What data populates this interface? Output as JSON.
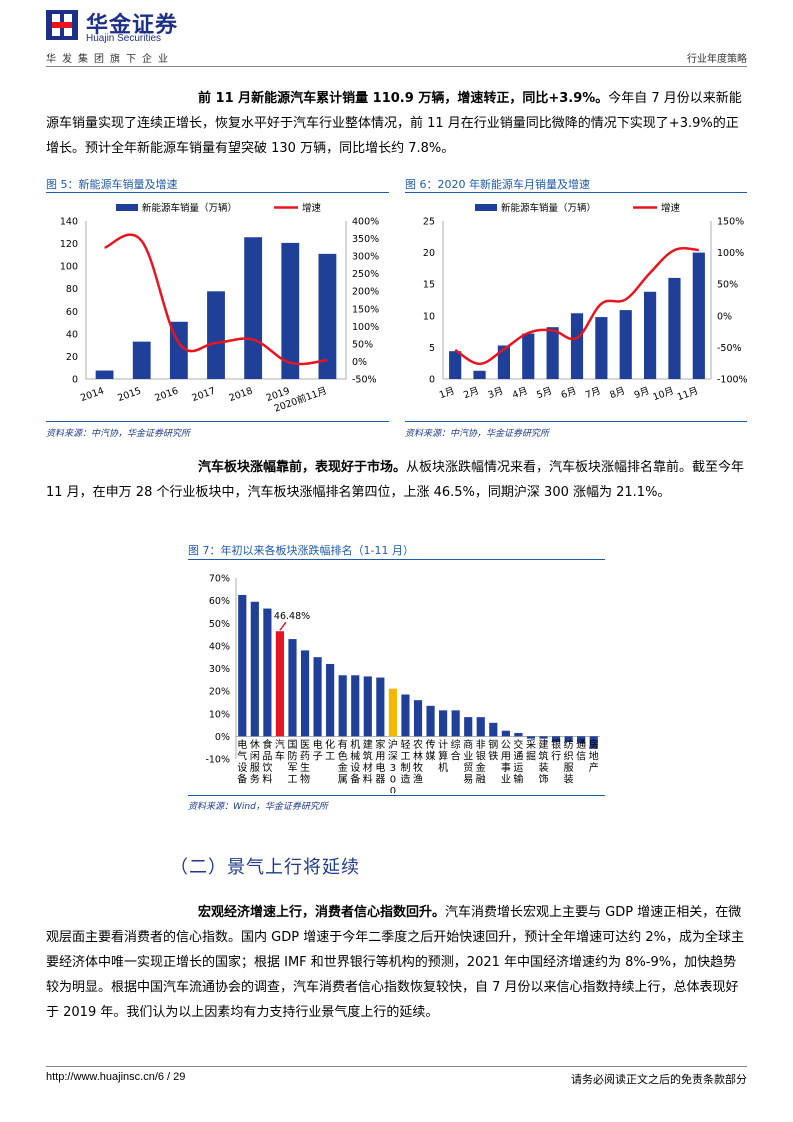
{
  "header": {
    "brand_cn": "华金证券",
    "brand_en": "Huajin Securities",
    "group": "华发集团旗下企业",
    "report_type": "行业年度策略"
  },
  "para1": {
    "bold": "前 11 月新能源汽车累计销量 110.9 万辆，增速转正，同比+3.9%。",
    "text": "今年自 7 月份以来新能源车销量实现了连续正增长，恢复水平好于汽车行业整体情况，前 11 月在行业销量同比微降的情况下实现了+3.9%的正增长。预计全年新能源车销量有望突破 130 万辆，同比增长约 7.8%。"
  },
  "fig5": {
    "title": "图 5：新能源车销量及增速",
    "source": "资料来源：中汽协，华金证券研究所"
  },
  "fig6": {
    "title": "图 6：2020 年新能源车月销量及增速",
    "source": "资料来源：中汽协，华金证券研究所"
  },
  "para2": {
    "bold": "汽车板块涨幅靠前，表现好于市场。",
    "text": "从板块涨跌幅情况来看，汽车板块涨幅排名靠前。截至今年 11 月，在申万 28 个行业板块中，汽车板块涨幅排名第四位，上涨 46.5%，同期沪深 300 涨幅为 21.1%。"
  },
  "fig7": {
    "title": "图 7：年初以来各板块涨跌幅排名（1-11 月）",
    "source": "资料来源：Wind，华金证券研究所"
  },
  "section_title": "（二）景气上行将延续",
  "para3": {
    "bold": "宏观经济增速上行，消费者信心指数回升。",
    "text": "汽车消费增长宏观上主要与 GDP 增速正相关，在微观层面主要看消费者的信心指数。国内 GDP 增速于今年二季度之后开始快速回升，预计全年增速可达约 2%，成为全球主要经济体中唯一实现正增长的国家；根据 IMF 和世界银行等机构的预测，2021 年中国经济增速约为 8%-9%，加快趋势较为明显。根据中国汽车流通协会的调查，汽车消费者信心指数恢复较快，自 7 月份以来信心指数持续上行，总体表现好于 2019 年。我们认为以上因素均有力支持行业景气度上行的延续。"
  },
  "footer": {
    "url": "http://www.huajinsc.cn/6 / 29",
    "disclaimer": "请务必阅读正文之后的免责条款部分"
  },
  "chart_data": [
    {
      "type": "bar",
      "categories": [
        "2014",
        "2015",
        "2016",
        "2017",
        "2018",
        "2019",
        "2020前11月"
      ],
      "series": [
        {
          "name": "新能源车销量（万辆）",
          "type": "bar",
          "axis": "left",
          "color": "#1f3f99",
          "values": [
            7.5,
            33.1,
            50.7,
            77.7,
            125.6,
            120.6,
            110.9
          ]
        },
        {
          "name": "增速",
          "type": "line",
          "axis": "right",
          "color": "#e8141f",
          "values": [
            324,
            343,
            53,
            53,
            62,
            -4,
            3.9
          ]
        }
      ],
      "ylim_left": [
        0,
        140
      ],
      "yticks_left": [
        "0",
        "20",
        "40",
        "60",
        "80",
        "100",
        "120",
        "140"
      ],
      "ylim_right": [
        -50,
        400
      ],
      "yticks_right": [
        "-50%",
        "0%",
        "50%",
        "100%",
        "150%",
        "200%",
        "250%",
        "300%",
        "350%",
        "400%"
      ],
      "legend": "top"
    },
    {
      "type": "bar",
      "categories": [
        "1月",
        "2月",
        "3月",
        "4月",
        "5月",
        "6月",
        "7月",
        "8月",
        "9月",
        "10月",
        "11月"
      ],
      "series": [
        {
          "name": "新能源车销量（万辆）",
          "type": "bar",
          "axis": "left",
          "color": "#1f3f99",
          "values": [
            4.4,
            1.3,
            5.3,
            7.2,
            8.2,
            10.4,
            9.8,
            10.9,
            13.8,
            16.0,
            20.0
          ]
        },
        {
          "name": "增速",
          "type": "line",
          "axis": "right",
          "color": "#e8141f",
          "values": [
            -54,
            -76,
            -53,
            -27,
            -23,
            -35,
            19,
            26,
            68,
            104,
            104
          ]
        }
      ],
      "ylim_left": [
        0,
        25
      ],
      "yticks_left": [
        "0",
        "5",
        "10",
        "15",
        "20",
        "25"
      ],
      "ylim_right": [
        -100,
        150
      ],
      "yticks_right": [
        "-100%",
        "-50%",
        "0%",
        "50%",
        "100%",
        "150%"
      ],
      "legend": "top"
    },
    {
      "type": "bar",
      "categories": [
        "电气设备",
        "休闲服务",
        "食品饮料",
        "汽车",
        "国防军工",
        "医药生物",
        "电子",
        "化工",
        "有色金属",
        "机械设备",
        "建筑材料",
        "家用电器",
        "沪深300",
        "轻工制造",
        "农林牧渔",
        "传媒",
        "计算机",
        "综合",
        "商业贸易",
        "非银金融",
        "钢铁",
        "公用事业",
        "交通运输",
        "采掘",
        "建筑装饰",
        "银行",
        "纺织服装",
        "通信",
        "房地产"
      ],
      "values": [
        62.5,
        59.5,
        56.5,
        46.48,
        43,
        38,
        35,
        32,
        27,
        27,
        26.5,
        26,
        21.1,
        18.5,
        16,
        13.5,
        11.5,
        11.5,
        8.5,
        8.5,
        6,
        2.5,
        1.5,
        -1,
        -1,
        -2.5,
        -2.5,
        -3,
        -5.5
      ],
      "colors": {
        "default": "#1f3f99",
        "highlight": "#e8141f",
        "index": "#f5b800"
      },
      "highlight_index": 3,
      "index_index": 12,
      "annotation": "46.48%",
      "ylim": [
        -10,
        70
      ],
      "yticks": [
        "-10%",
        "0%",
        "10%",
        "20%",
        "30%",
        "40%",
        "50%",
        "60%",
        "70%"
      ]
    }
  ]
}
